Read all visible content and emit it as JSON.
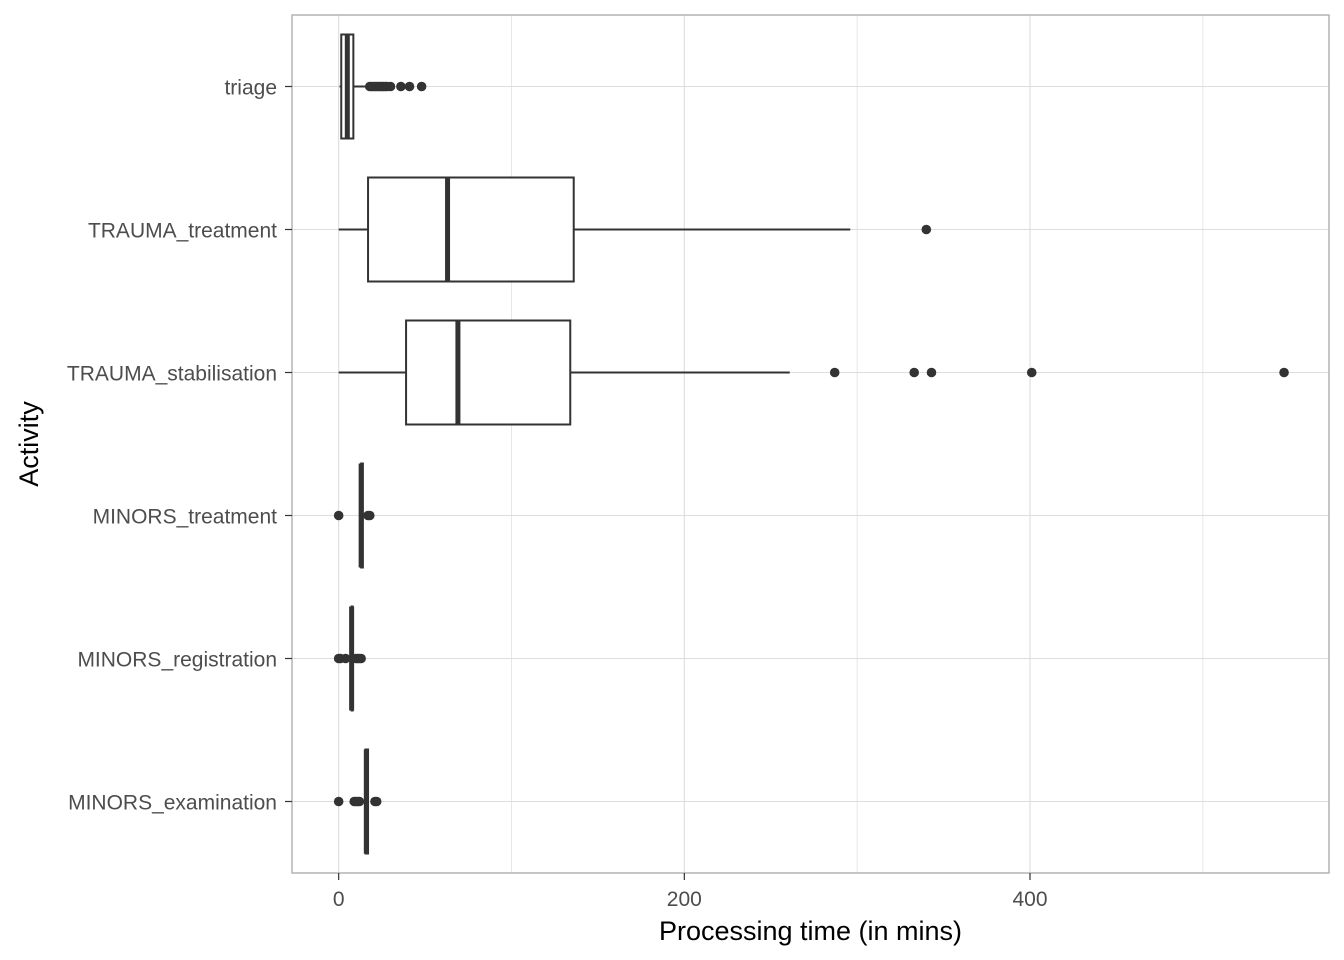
{
  "chart_data": {
    "type": "boxplot",
    "orientation": "horizontal",
    "xlabel": "Processing time (in mins)",
    "ylabel": "Activity",
    "xlim": [
      -27,
      573
    ],
    "xticks": [
      0,
      200,
      400
    ],
    "grid": true,
    "legend": "none",
    "colors": {
      "box_stroke": "#333333",
      "grid": "#dddddd",
      "panel_border": "#b3b3b3",
      "tick": "#333333"
    },
    "categories": [
      "triage",
      "TRAUMA_treatment",
      "TRAUMA_stabilisation",
      "MINORS_treatment",
      "MINORS_registration",
      "MINORS_examination"
    ],
    "boxes": [
      {
        "category": "triage",
        "min": 0.5,
        "q1": 1.5,
        "median": 5,
        "q3": 8.5,
        "max": 17,
        "outliers": [
          18,
          19,
          20,
          21,
          22,
          23,
          24,
          25,
          26,
          27,
          28,
          30,
          36,
          41,
          48
        ]
      },
      {
        "category": "TRAUMA_treatment",
        "min": 0,
        "q1": 17,
        "median": 63,
        "q3": 136,
        "max": 296,
        "outliers": [
          340
        ]
      },
      {
        "category": "TRAUMA_stabilisation",
        "min": 0,
        "q1": 39,
        "median": 69,
        "q3": 134,
        "max": 261,
        "outliers": [
          287,
          333,
          343,
          401,
          547
        ]
      },
      {
        "category": "MINORS_treatment",
        "min": 12,
        "q1": 13,
        "median": 13,
        "q3": 14,
        "max": 15,
        "outliers": [
          0,
          17,
          18
        ]
      },
      {
        "category": "MINORS_registration",
        "min": 7,
        "q1": 7.5,
        "median": 7.5,
        "q3": 8,
        "max": 8.5,
        "outliers": [
          0,
          1,
          4,
          10,
          11,
          12,
          13
        ]
      },
      {
        "category": "MINORS_examination",
        "min": 15,
        "q1": 15.5,
        "median": 16,
        "q3": 17,
        "max": 17.5,
        "outliers": [
          0,
          9,
          10,
          11,
          12,
          21,
          22
        ]
      }
    ]
  }
}
